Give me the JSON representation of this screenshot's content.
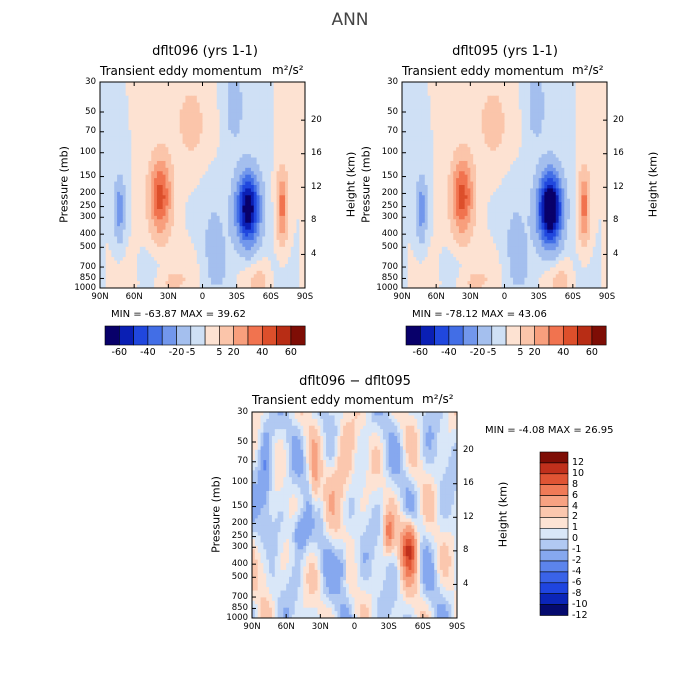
{
  "page_title": "ANN",
  "panels": [
    {
      "title": "dflt096 (yrs 1-1)",
      "subtitle": "Transient eddy momentum",
      "units": "m²/s²",
      "min_max": "MIN = -63.87   MAX = 39.62"
    },
    {
      "title": "dflt095 (yrs 1-1)",
      "subtitle": "Transient eddy momentum",
      "units": "m²/s²",
      "min_max": "MIN = -78.12   MAX = 43.06"
    },
    {
      "title": "dflt096 − dflt095",
      "subtitle": "Transient eddy momentum",
      "units": "m²/s²",
      "min_max": "MIN =   -4.08   MAX =   26.95"
    }
  ],
  "chart_data": [
    {
      "type": "heatmap",
      "title": "dflt096 (yrs 1-1)",
      "xlabel": "",
      "ylabel": "Pressure (mb)",
      "y2label": "Height (km)",
      "x_ticks": [
        "90N",
        "60N",
        "30N",
        "0",
        "30S",
        "60S",
        "90S"
      ],
      "y_ticks": [
        "30",
        "50",
        "70",
        "100",
        "150",
        "200",
        "250",
        "300",
        "400",
        "500",
        "700",
        "850",
        "1000"
      ],
      "y2_ticks": [
        "20",
        "16",
        "12",
        "8",
        "4"
      ],
      "colorbar_levels": [
        "-60",
        "-40",
        "-20",
        "-5",
        "5",
        "20",
        "40",
        "60"
      ],
      "min": -63.87,
      "max": 39.62,
      "features": [
        {
          "lat": 38,
          "p": 200,
          "value": 39.6
        },
        {
          "lat": -40,
          "p": 250,
          "value": -63.9
        },
        {
          "lat": -70,
          "p": 250,
          "value": 30
        },
        {
          "lat": 75,
          "p": 250,
          "value": -20
        }
      ]
    },
    {
      "type": "heatmap",
      "title": "dflt095 (yrs 1-1)",
      "xlabel": "",
      "ylabel": "Pressure (mb)",
      "y2label": "Height (km)",
      "x_ticks": [
        "90N",
        "60N",
        "30N",
        "0",
        "30S",
        "60S",
        "90S"
      ],
      "y_ticks": [
        "30",
        "50",
        "70",
        "100",
        "150",
        "200",
        "250",
        "300",
        "400",
        "500",
        "700",
        "850",
        "1000"
      ],
      "y2_ticks": [
        "20",
        "16",
        "12",
        "8",
        "4"
      ],
      "colorbar_levels": [
        "-60",
        "-40",
        "-20",
        "-5",
        "5",
        "20",
        "40",
        "60"
      ],
      "min": -78.12,
      "max": 43.06,
      "features": [
        {
          "lat": 38,
          "p": 200,
          "value": 43.1
        },
        {
          "lat": -40,
          "p": 250,
          "value": -78.1
        },
        {
          "lat": -70,
          "p": 250,
          "value": 30
        },
        {
          "lat": 75,
          "p": 250,
          "value": -20
        }
      ]
    },
    {
      "type": "heatmap",
      "title": "dflt096 − dflt095",
      "xlabel": "",
      "ylabel": "Pressure (mb)",
      "y2label": "Height (km)",
      "x_ticks": [
        "90N",
        "60N",
        "30N",
        "0",
        "30S",
        "60S",
        "90S"
      ],
      "y_ticks": [
        "30",
        "50",
        "70",
        "100",
        "150",
        "200",
        "250",
        "300",
        "400",
        "500",
        "700",
        "850",
        "1000"
      ],
      "y2_ticks": [
        "20",
        "16",
        "12",
        "8",
        "4"
      ],
      "colorbar_levels": [
        "12",
        "10",
        "8",
        "6",
        "4",
        "2",
        "1",
        "0",
        "-1",
        "-2",
        "-4",
        "-6",
        "-8",
        "-10",
        "-12"
      ],
      "min": -4.08,
      "max": 26.95,
      "features": [
        {
          "lat": -47,
          "p": 300,
          "value": 8
        },
        {
          "lat": 45,
          "p": 200,
          "value": -4
        }
      ]
    }
  ],
  "colors": {
    "neg": [
      "#08006a",
      "#0a1fb4",
      "#2047de",
      "#426ee6",
      "#7297ec",
      "#a4bfee",
      "#cfe0f5"
    ],
    "pos": [
      "#fde2d2",
      "#fbc5aa",
      "#f89f7d",
      "#f1734f",
      "#dd4f2b",
      "#b82d15",
      "#7e0d05"
    ],
    "diff": [
      "#050a6e",
      "#0b25b8",
      "#1f45e0",
      "#3a63e8",
      "#5c84ec",
      "#86a8ef",
      "#b1c9f2",
      "#d9e7f8",
      "#fde3d4",
      "#fbc7ae",
      "#f7a282",
      "#f07a57",
      "#e05434",
      "#c0301c",
      "#7e0d05"
    ]
  }
}
